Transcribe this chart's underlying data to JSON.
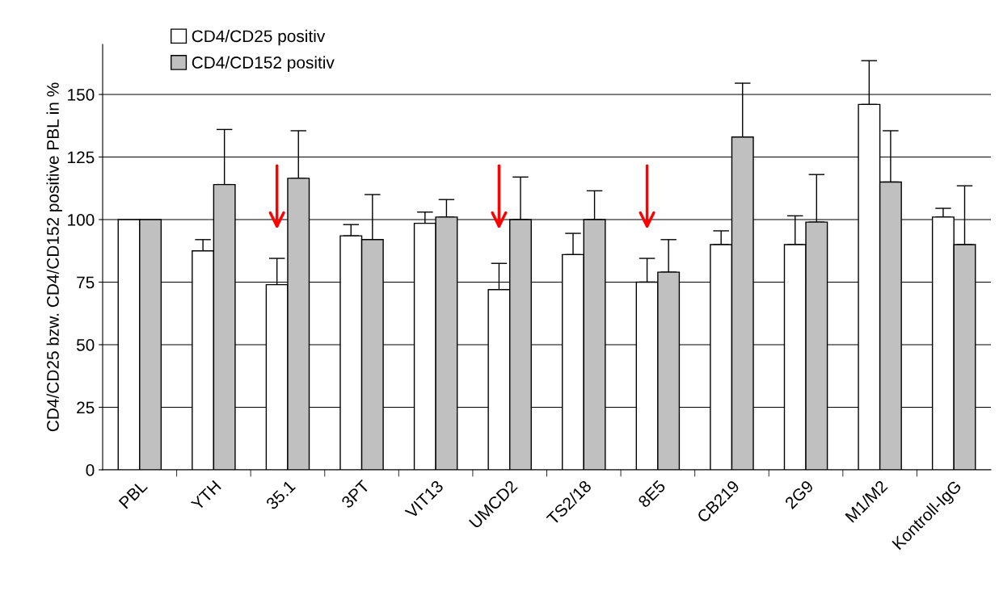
{
  "chart_data": {
    "type": "bar",
    "ylabel": "CD4/CD25 bzw. CD4/CD152 positive PBL in %",
    "categories": [
      "PBL",
      "YTH",
      "35.1",
      "3PT",
      "VIT13",
      "UMCD2",
      "TS2/18",
      "8E5",
      "CB219",
      "2G9",
      "M1/M2",
      "Kontroll-IgG"
    ],
    "series": [
      {
        "name": "CD4/CD25 positiv",
        "color": "#ffffff",
        "values": [
          100,
          87.5,
          74,
          93.5,
          98.5,
          72,
          86,
          75,
          90,
          90,
          146,
          101
        ],
        "errors": [
          null,
          [
            87.5,
            92
          ],
          [
            74,
            84.5
          ],
          [
            93.5,
            98
          ],
          [
            98.5,
            103
          ],
          [
            72,
            82.5
          ],
          [
            86,
            94.5
          ],
          [
            75,
            84.5
          ],
          [
            90,
            95.5
          ],
          [
            90,
            101.5
          ],
          [
            146,
            163.5
          ],
          [
            101,
            104.5
          ]
        ]
      },
      {
        "name": "CD4/CD152 positiv",
        "color": "#c0c0c0",
        "values": [
          100,
          114,
          116.5,
          92,
          101,
          100,
          100,
          79,
          133,
          99,
          115,
          90
        ],
        "errors": [
          null,
          [
            114,
            136
          ],
          [
            116.5,
            135.5
          ],
          [
            92,
            110
          ],
          [
            101,
            108
          ],
          [
            100,
            117
          ],
          [
            100,
            111.5
          ],
          [
            79,
            92
          ],
          [
            133,
            154.5
          ],
          [
            99,
            118
          ],
          [
            115,
            135.5
          ],
          [
            90,
            113.5
          ]
        ]
      }
    ],
    "ylim": [
      0,
      170
    ],
    "yticks": [
      0,
      25,
      50,
      75,
      100,
      125,
      150
    ],
    "grid": "y",
    "legend": "top left"
  }
}
